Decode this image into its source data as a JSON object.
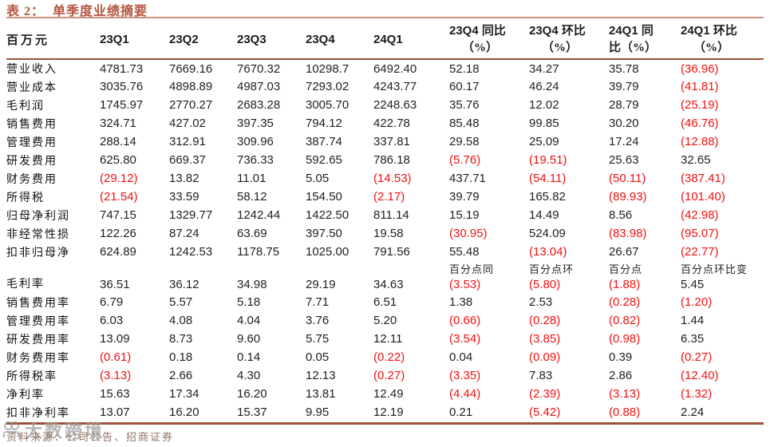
{
  "title": {
    "prefix": "表 2：",
    "text": "单季度业绩摘要"
  },
  "table": {
    "unit_header": "百万元",
    "quarter_headers": [
      "23Q1",
      "23Q2",
      "23Q3",
      "23Q4",
      "24Q1"
    ],
    "pct_headers": [
      {
        "quarter": "23Q4",
        "suffix": "同比",
        "line2": "（%）"
      },
      {
        "quarter": "23Q4",
        "suffix": "环比",
        "line2": "（%）"
      },
      {
        "quarter": "24Q1",
        "suffix": "同",
        "line2": "比（%）"
      },
      {
        "quarter": "24Q1",
        "suffix": "环比",
        "line2": "（%）"
      }
    ],
    "rows": [
      {
        "label": "营业收入",
        "values": [
          "4781.73",
          "7669.16",
          "7670.32",
          "10298.7",
          "6492.40",
          "52.18",
          "34.27",
          "35.78",
          "(36.96)"
        ]
      },
      {
        "label": "营业成本",
        "values": [
          "3035.76",
          "4898.89",
          "4987.03",
          "7293.02",
          "4243.77",
          "60.17",
          "46.24",
          "39.79",
          "(41.81)"
        ]
      },
      {
        "label": "毛利润",
        "values": [
          "1745.97",
          "2770.27",
          "2683.28",
          "3005.70",
          "2248.63",
          "35.76",
          "12.02",
          "28.79",
          "(25.19)"
        ]
      },
      {
        "label": "销售费用",
        "values": [
          "324.71",
          "427.02",
          "397.35",
          "794.12",
          "422.78",
          "85.48",
          "99.85",
          "30.20",
          "(46.76)"
        ]
      },
      {
        "label": "管理费用",
        "values": [
          "288.14",
          "312.91",
          "309.96",
          "387.74",
          "337.81",
          "29.58",
          "25.09",
          "17.24",
          "(12.88)"
        ]
      },
      {
        "label": "研发费用",
        "values": [
          "625.80",
          "669.37",
          "736.33",
          "592.65",
          "786.18",
          "(5.76)",
          "(19.51)",
          "25.63",
          "32.65"
        ]
      },
      {
        "label": "财务费用",
        "values": [
          "(29.12)",
          "13.82",
          "11.01",
          "5.05",
          "(14.53)",
          "437.71",
          "(54.11)",
          "(50.11)",
          "(387.41)"
        ]
      },
      {
        "label": "所得税",
        "values": [
          "(21.54)",
          "33.59",
          "58.12",
          "154.50",
          "(2.17)",
          "39.79",
          "165.82",
          "(89.93)",
          "(101.40)"
        ]
      },
      {
        "label": "归母净利润",
        "values": [
          "747.15",
          "1329.77",
          "1242.44",
          "1422.50",
          "811.14",
          "15.19",
          "14.49",
          "8.56",
          "(42.98)"
        ]
      },
      {
        "label": "非经常性损",
        "values": [
          "122.26",
          "87.24",
          "63.69",
          "397.50",
          "19.58",
          "(30.95)",
          "524.09",
          "(83.98)",
          "(95.07)"
        ]
      },
      {
        "label": "扣非归母净",
        "values": [
          "624.89",
          "1242.53",
          "1178.75",
          "1025.00",
          "791.56",
          "55.48",
          "(13.04)",
          "26.67",
          "(22.77)"
        ]
      },
      {
        "label": "毛利率",
        "values": [
          "36.51",
          "36.12",
          "34.98",
          "29.19",
          "34.63",
          "(3.53)",
          "(5.80)",
          "(1.88)",
          "5.45"
        ],
        "sublabels": [
          "百分点同",
          "百分点环",
          "百分点",
          "百分点环比变"
        ]
      },
      {
        "label": "销售费用率",
        "values": [
          "6.79",
          "5.57",
          "5.18",
          "7.71",
          "6.51",
          "1.38",
          "2.53",
          "(0.28)",
          "(1.20)"
        ]
      },
      {
        "label": "管理费用率",
        "values": [
          "6.03",
          "4.08",
          "4.04",
          "3.76",
          "5.20",
          "(0.66)",
          "(0.28)",
          "(0.82)",
          "1.44"
        ]
      },
      {
        "label": "研发费用率",
        "values": [
          "13.09",
          "8.73",
          "9.60",
          "5.75",
          "12.11",
          "(3.54)",
          "(3.85)",
          "(0.98)",
          "6.35"
        ]
      },
      {
        "label": "财务费用率",
        "values": [
          "(0.61)",
          "0.18",
          "0.14",
          "0.05",
          "(0.22)",
          "0.04",
          "(0.09)",
          "0.39",
          "(0.27)"
        ]
      },
      {
        "label": "所得税率",
        "values": [
          "(3.13)",
          "2.66",
          "4.30",
          "12.13",
          "(0.27)",
          "(3.35)",
          "7.83",
          "2.86",
          "(12.40)"
        ]
      },
      {
        "label": "净利率",
        "values": [
          "15.63",
          "17.34",
          "16.20",
          "13.81",
          "12.49",
          "(4.44)",
          "(2.39)",
          "(3.13)",
          "(1.32)"
        ]
      },
      {
        "label": "扣非净利率",
        "values": [
          "13.07",
          "16.20",
          "15.37",
          "9.95",
          "12.19",
          "0.21",
          "(5.42)",
          "(0.88)",
          "2.24"
        ]
      }
    ]
  },
  "footer": {
    "source": "资料来源：公司公告、招商证券"
  },
  "watermark": {
    "text": "大数跨境",
    "icon": "chain-rings-icon"
  },
  "colors": {
    "accent_title": "#b5543e",
    "line_light": "#c9937c",
    "line_dark": "#9d5138",
    "negative_red": "#f01212",
    "footer_text": "#8f7463",
    "watermark_gray": "#8a8a8a"
  }
}
